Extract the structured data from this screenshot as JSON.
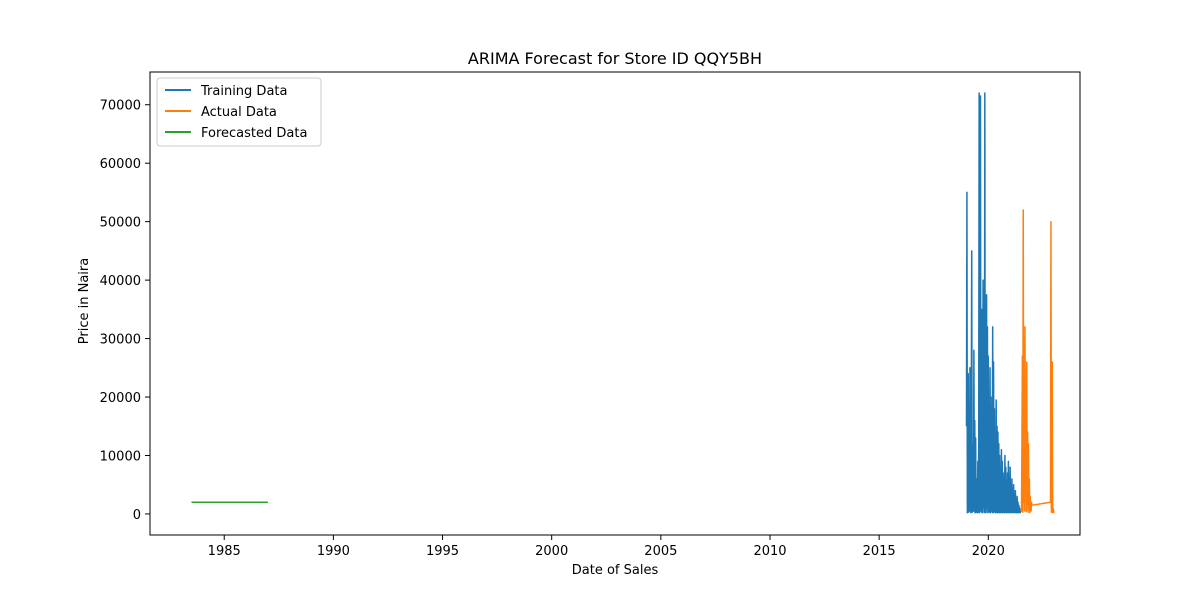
{
  "chart_data": {
    "type": "line",
    "title": "ARIMA Forecast for Store ID QQY5BH",
    "xlabel": "Date of Sales",
    "ylabel": "Price in Naira",
    "xlim": [
      1981.6,
      2024.2
    ],
    "ylim": [
      -3600,
      75600
    ],
    "x_ticks": [
      1985,
      1990,
      1995,
      2000,
      2005,
      2010,
      2015,
      2020
    ],
    "y_ticks": [
      0,
      10000,
      20000,
      30000,
      40000,
      50000,
      60000,
      70000
    ],
    "grid": false,
    "legend_position": "top-left",
    "series": [
      {
        "name": "Training Data",
        "color": "#1f77b4",
        "x": [
          2019.0,
          2019.02,
          2019.04,
          2019.06,
          2019.08,
          2019.1,
          2019.12,
          2019.14,
          2019.16,
          2019.18,
          2019.2,
          2019.22,
          2019.24,
          2019.26,
          2019.28,
          2019.3,
          2019.32,
          2019.34,
          2019.36,
          2019.38,
          2019.4,
          2019.42,
          2019.44,
          2019.46,
          2019.48,
          2019.5,
          2019.52,
          2019.54,
          2019.56,
          2019.58,
          2019.6,
          2019.62,
          2019.64,
          2019.66,
          2019.68,
          2019.7,
          2019.72,
          2019.74,
          2019.76,
          2019.78,
          2019.8,
          2019.82,
          2019.84,
          2019.86,
          2019.88,
          2019.9,
          2019.92,
          2019.94,
          2019.96,
          2019.98,
          2020.0,
          2020.02,
          2020.04,
          2020.06,
          2020.08,
          2020.1,
          2020.12,
          2020.14,
          2020.16,
          2020.18,
          2020.2,
          2020.22,
          2020.24,
          2020.26,
          2020.28,
          2020.3,
          2020.32,
          2020.34,
          2020.36,
          2020.38,
          2020.4,
          2020.42,
          2020.44,
          2020.46,
          2020.48,
          2020.5,
          2020.52,
          2020.54,
          2020.56,
          2020.58,
          2020.6,
          2020.62,
          2020.64,
          2020.66,
          2020.68,
          2020.7,
          2020.72,
          2020.74,
          2020.76,
          2020.78,
          2020.8,
          2020.82,
          2020.84,
          2020.86,
          2020.88,
          2020.9,
          2020.92,
          2020.94,
          2020.96,
          2020.98,
          2021.0,
          2021.02,
          2021.04,
          2021.06,
          2021.08,
          2021.1,
          2021.12,
          2021.14,
          2021.16,
          2021.18,
          2021.2,
          2021.22,
          2021.24,
          2021.26,
          2021.28,
          2021.3,
          2021.32,
          2021.34,
          2021.36,
          2021.38,
          2021.4,
          2021.42,
          2021.44,
          2021.46,
          2021.48,
          2021.5
        ],
        "y": [
          15000,
          55000,
          200,
          12000,
          24000,
          300,
          18000,
          500,
          25000,
          8000,
          200,
          16000,
          45000,
          300,
          12000,
          9000,
          500,
          28000,
          400,
          16000,
          200,
          13000,
          300,
          6000,
          4000,
          200,
          9000,
          300,
          12000,
          72000,
          200,
          30000,
          71500,
          500,
          25000,
          300,
          35000,
          200,
          40000,
          1000,
          35000,
          300,
          72000,
          200,
          29000,
          300,
          37500,
          1000,
          32000,
          200,
          27000,
          400,
          17000,
          300,
          25000,
          200,
          20000,
          500,
          15000,
          300,
          32000,
          200,
          26000,
          300,
          18000,
          400,
          13000,
          200,
          19500,
          300,
          15000,
          200,
          14000,
          300,
          12000,
          200,
          10000,
          300,
          8000,
          200,
          11000,
          300,
          9000,
          200,
          7000,
          300,
          6000,
          200,
          10000,
          300,
          8000,
          200,
          5000,
          300,
          7000,
          200,
          9000,
          300,
          6000,
          200,
          8000,
          300,
          5000,
          200,
          6000,
          300,
          4000,
          200,
          5000,
          300,
          3000,
          200,
          4000,
          300,
          2000,
          200,
          3000,
          300,
          2000,
          200,
          1500,
          300,
          1000,
          200,
          500,
          300
        ]
      },
      {
        "name": "Actual Data",
        "color": "#ff7f0e",
        "x": [
          2021.52,
          2021.54,
          2021.56,
          2021.58,
          2021.6,
          2021.62,
          2021.64,
          2021.66,
          2021.68,
          2021.7,
          2021.72,
          2021.74,
          2021.76,
          2021.78,
          2021.8,
          2021.82,
          2021.84,
          2021.86,
          2021.88,
          2021.9,
          2021.92,
          2021.94,
          2021.96,
          2021.98,
          2022.0,
          2022.85,
          2022.87,
          2022.89,
          2022.91,
          2022.93,
          2022.95,
          2022.97,
          2022.99,
          2023.01
        ],
        "y": [
          500,
          12000,
          27000,
          300,
          52000,
          2000,
          14000,
          500,
          32000,
          3000,
          11000,
          400,
          26000,
          1500,
          14000,
          300,
          12000,
          800,
          6000,
          200,
          3000,
          1000,
          500,
          2000,
          1500,
          2000,
          50000,
          300,
          8000,
          26000,
          200,
          1000,
          500,
          200
        ]
      },
      {
        "name": "Forecasted Data",
        "color": "#2ca02c",
        "x": [
          1983.5,
          1987.0
        ],
        "y": [
          2000,
          2000
        ]
      }
    ]
  }
}
